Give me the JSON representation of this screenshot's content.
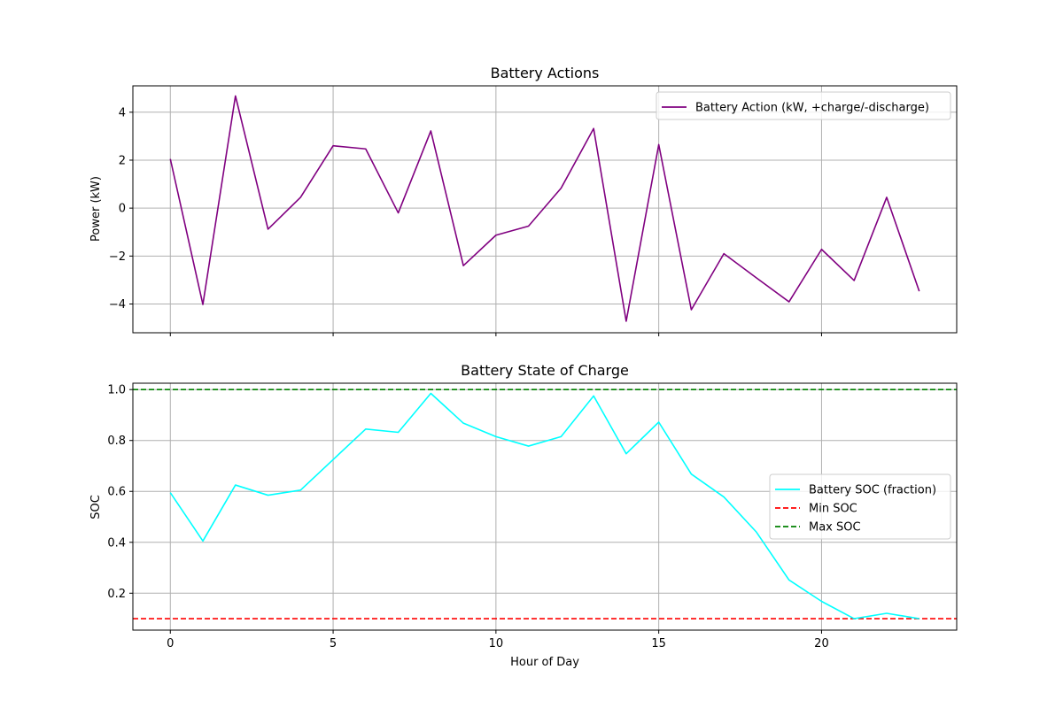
{
  "chart_data": [
    {
      "type": "line",
      "title": "Battery Actions",
      "xlabel": "",
      "ylabel": "Power (kW)",
      "xlim": [
        -1.15,
        24.15
      ],
      "ylim": [
        -5.2,
        5.1
      ],
      "xticks": [
        0,
        5,
        10,
        15,
        20
      ],
      "yticks": [
        -4,
        -2,
        0,
        2,
        4
      ],
      "ytick_labels": [
        "−4",
        "−2",
        "0",
        "2",
        "4"
      ],
      "show_xtick_labels": false,
      "grid": true,
      "legend_position": "upper right",
      "x": [
        0,
        1,
        2,
        3,
        4,
        5,
        6,
        7,
        8,
        9,
        10,
        11,
        12,
        13,
        14,
        15,
        16,
        17,
        18,
        19,
        20,
        21,
        22,
        23
      ],
      "series": [
        {
          "name": "Battery Action (kW, +charge/-discharge)",
          "color": "#800080",
          "dash": "solid",
          "values": [
            2.05,
            -4.02,
            4.68,
            -0.88,
            0.45,
            2.6,
            2.47,
            -0.2,
            3.22,
            -2.4,
            -1.13,
            -0.75,
            0.83,
            3.32,
            -4.72,
            2.65,
            -4.24,
            -1.9,
            -2.91,
            -3.91,
            -1.72,
            -3.02,
            0.45,
            -3.47
          ]
        }
      ]
    },
    {
      "type": "line",
      "title": "Battery State of Charge",
      "xlabel": "Hour of Day",
      "ylabel": "SOC",
      "xlim": [
        -1.15,
        24.15
      ],
      "ylim": [
        0.055,
        1.025
      ],
      "xticks": [
        0,
        5,
        10,
        15,
        20
      ],
      "xtick_labels": [
        "0",
        "5",
        "10",
        "15",
        "20"
      ],
      "yticks": [
        0.2,
        0.4,
        0.6,
        0.8,
        1.0
      ],
      "ytick_labels": [
        "0.2",
        "0.4",
        "0.6",
        "0.8",
        "1.0"
      ],
      "show_xtick_labels": true,
      "grid": true,
      "legend_position": "center right",
      "x": [
        0,
        1,
        2,
        3,
        4,
        5,
        6,
        7,
        8,
        9,
        10,
        11,
        12,
        13,
        14,
        15,
        16,
        17,
        18,
        19,
        20,
        21,
        22,
        23
      ],
      "series": [
        {
          "name": "Battery SOC (fraction)",
          "color": "#00ffff",
          "dash": "solid",
          "values": [
            0.595,
            0.405,
            0.625,
            0.585,
            0.605,
            0.725,
            0.845,
            0.832,
            0.985,
            0.868,
            0.815,
            0.778,
            0.815,
            0.975,
            0.748,
            0.872,
            0.668,
            0.578,
            0.44,
            0.252,
            0.168,
            0.1,
            0.121,
            0.1
          ]
        }
      ],
      "hlines": [
        {
          "name": "Min SOC",
          "value": 0.1,
          "color": "#ff0000",
          "dash": "dashed"
        },
        {
          "name": "Max SOC",
          "value": 1.0,
          "color": "#008000",
          "dash": "dashed"
        }
      ]
    }
  ]
}
